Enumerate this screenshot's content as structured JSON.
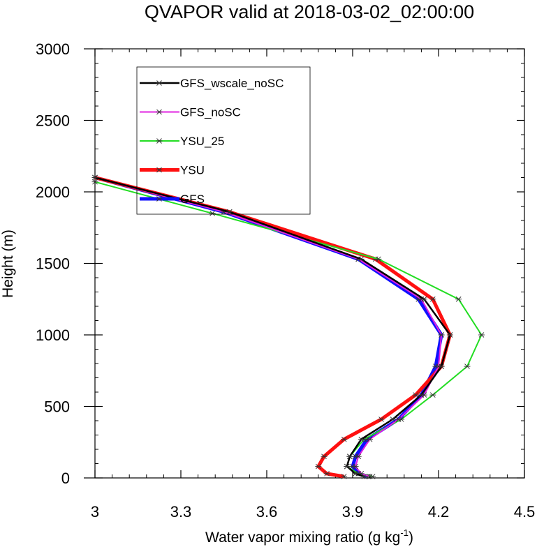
{
  "chart_data": {
    "type": "line",
    "title": "QVAPOR valid at 2018-03-02_02:00:00",
    "xlabel": "Water vapor mixing ratio (g kg",
    "xlabel_sup": "-1",
    "xlabel_close": ")",
    "ylabel": "Height (m)",
    "xlim": [
      3.0,
      4.5
    ],
    "ylim": [
      0,
      3000
    ],
    "x_ticks": [
      3.0,
      3.3,
      3.6,
      3.9,
      4.2,
      4.5
    ],
    "x_tick_labels": [
      "3",
      "3.3",
      "3.6",
      "3.9",
      "4.2",
      "4.5"
    ],
    "y_ticks": [
      0,
      500,
      1000,
      1500,
      2000,
      2500,
      3000
    ],
    "y_tick_labels": [
      "0",
      "500",
      "1000",
      "1500",
      "2000",
      "2500",
      "3000"
    ],
    "legend_position": "top-left",
    "series": [
      {
        "name": "GFS",
        "color": "#1010ff",
        "width": 5,
        "points": [
          [
            3.95,
            10
          ],
          [
            3.92,
            30
          ],
          [
            3.9,
            80
          ],
          [
            3.91,
            150
          ],
          [
            3.95,
            270
          ],
          [
            4.06,
            410
          ],
          [
            4.14,
            580
          ],
          [
            4.19,
            780
          ],
          [
            4.21,
            1000
          ],
          [
            4.13,
            1250
          ],
          [
            3.92,
            1530
          ],
          [
            3.45,
            1860
          ],
          [
            3.0,
            2100
          ]
        ]
      },
      {
        "name": "YSU",
        "color": "#ff1010",
        "width": 5,
        "points": [
          [
            3.87,
            10
          ],
          [
            3.81,
            30
          ],
          [
            3.78,
            80
          ],
          [
            3.8,
            150
          ],
          [
            3.87,
            270
          ],
          [
            4.0,
            410
          ],
          [
            4.12,
            580
          ],
          [
            4.21,
            780
          ],
          [
            4.24,
            1000
          ],
          [
            4.18,
            1250
          ],
          [
            3.98,
            1530
          ],
          [
            3.47,
            1860
          ],
          [
            3.0,
            2100
          ]
        ]
      },
      {
        "name": "YSU_25",
        "color": "#22dd22",
        "width": 2,
        "points": [
          [
            3.97,
            10
          ],
          [
            3.92,
            30
          ],
          [
            3.88,
            80
          ],
          [
            3.89,
            150
          ],
          [
            3.94,
            270
          ],
          [
            4.07,
            410
          ],
          [
            4.18,
            580
          ],
          [
            4.3,
            780
          ],
          [
            4.35,
            1000
          ],
          [
            4.27,
            1250
          ],
          [
            3.99,
            1530
          ],
          [
            3.41,
            1850
          ],
          [
            3.0,
            2070
          ]
        ]
      },
      {
        "name": "GFS_noSC",
        "color": "#e020e0",
        "width": 2,
        "points": [
          [
            3.96,
            10
          ],
          [
            3.93,
            30
          ],
          [
            3.91,
            80
          ],
          [
            3.92,
            150
          ],
          [
            3.96,
            270
          ],
          [
            4.06,
            410
          ],
          [
            4.15,
            580
          ],
          [
            4.2,
            780
          ],
          [
            4.21,
            1000
          ],
          [
            4.14,
            1250
          ],
          [
            3.92,
            1530
          ],
          [
            3.45,
            1860
          ],
          [
            3.0,
            2100
          ]
        ]
      },
      {
        "name": "GFS_wscale_noSC",
        "color": "#000000",
        "width": 2.5,
        "points": [
          [
            3.94,
            10
          ],
          [
            3.91,
            30
          ],
          [
            3.88,
            80
          ],
          [
            3.89,
            150
          ],
          [
            3.93,
            270
          ],
          [
            4.04,
            410
          ],
          [
            4.14,
            580
          ],
          [
            4.21,
            780
          ],
          [
            4.24,
            1000
          ],
          [
            4.15,
            1250
          ],
          [
            3.93,
            1530
          ],
          [
            3.47,
            1860
          ],
          [
            3.0,
            2100
          ]
        ]
      }
    ],
    "legend": [
      "GFS_wscale_noSC",
      "GFS_noSC",
      "YSU_25",
      "YSU",
      "GFS"
    ]
  }
}
